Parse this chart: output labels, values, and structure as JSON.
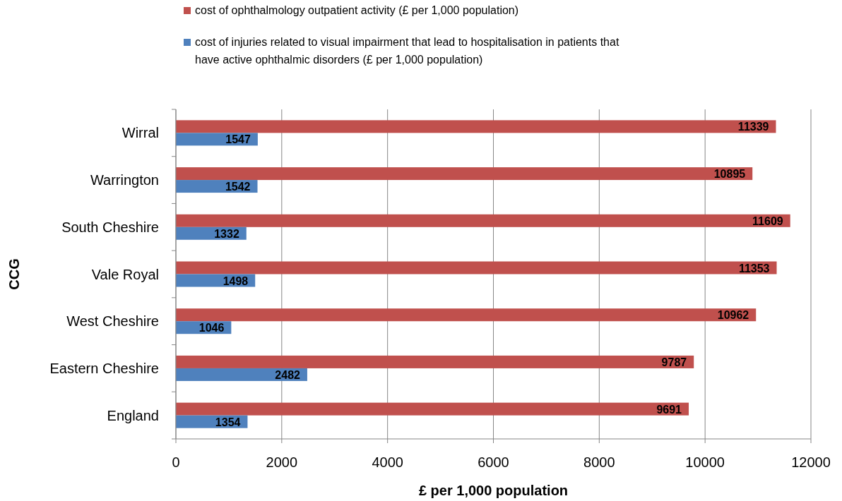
{
  "chart_data": {
    "type": "bar",
    "orientation": "horizontal",
    "ylabel": "CCG",
    "xlabel": "£ per 1,000 population",
    "categories": [
      "Wirral",
      "Warrington",
      "South Cheshire",
      "Vale Royal",
      "West Cheshire",
      "Eastern Cheshire",
      "England"
    ],
    "series": [
      {
        "name": "cost of ophthalmology outpatient activity (£ per 1,000 population)",
        "color": "#c0504d",
        "values": [
          11339,
          10895,
          11609,
          11353,
          10962,
          9787,
          9691
        ]
      },
      {
        "name": "cost of injuries related to visual impairment that lead to hospitalisation in patients that have active ophthalmic disorders (£ per 1,000 population)",
        "color": "#4f81bd",
        "values": [
          1547,
          1542,
          1332,
          1498,
          1046,
          2482,
          1354
        ]
      }
    ],
    "xlim": [
      0,
      12000
    ],
    "xticks": [
      0,
      2000,
      4000,
      6000,
      8000,
      10000,
      12000
    ],
    "grid": "x",
    "legend": "top",
    "data_labels": true
  }
}
